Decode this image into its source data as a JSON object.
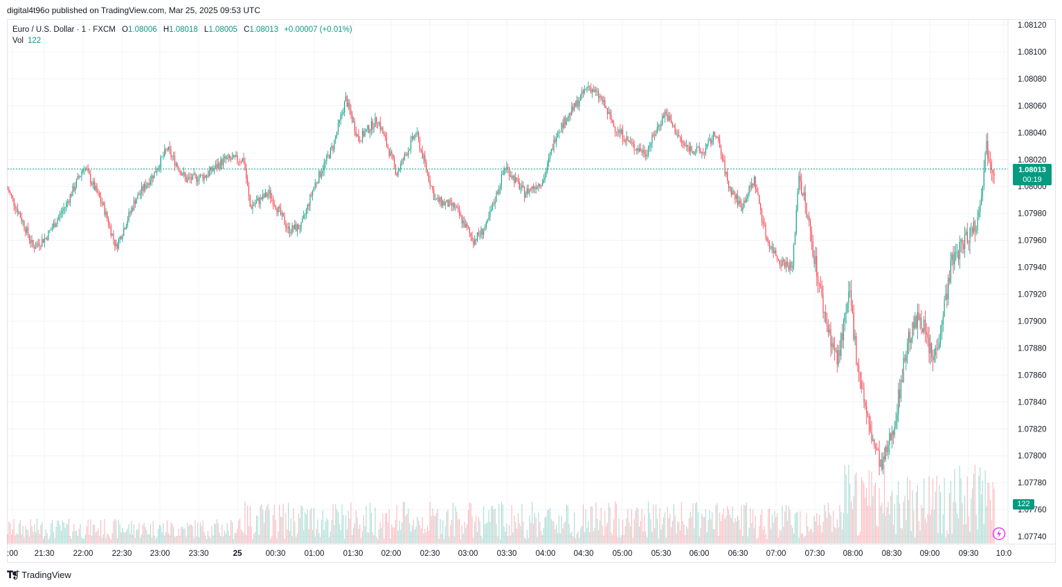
{
  "publisher_line": "digital4t96o published on TradingView.com, Mar 25, 2025 09:53 UTC",
  "footer": {
    "brand": "TradingView",
    "logo_icon": "tradingview-logo-icon"
  },
  "legend": {
    "symbol": "Euro / U.S. Dollar · 1 · FXCM",
    "open_label": "O",
    "open": "1.08006",
    "high_label": "H",
    "high": "1.08018",
    "low_label": "L",
    "low": "1.08005",
    "close_label": "C",
    "close": "1.08013",
    "change": "+0.00007 (+0.01%)",
    "vol_label": "Vol",
    "vol": "122"
  },
  "badges": {
    "last_price": "1.08013",
    "countdown": "00:19",
    "last_volume": "122"
  },
  "colors": {
    "up": "#089981",
    "down": "#f23645",
    "grid": "#f0f3fa",
    "last_line": "#089981",
    "flash": "#e040fb"
  },
  "chart_data": {
    "type": "candlestick",
    "title": "Euro / U.S. Dollar · 1 · FXCM",
    "interval": "1 minute",
    "y_axis": {
      "ylim": [
        1.0773,
        1.0813
      ],
      "ticks": [
        "1.08120",
        "1.08100",
        "1.08080",
        "1.08060",
        "1.08040",
        "1.08020",
        "1.08000",
        "1.07980",
        "1.07960",
        "1.07940",
        "1.07920",
        "1.07900",
        "1.07880",
        "1.07860",
        "1.07840",
        "1.07820",
        "1.07800",
        "1.07780",
        "1.07760",
        "1.07740"
      ],
      "position": "right"
    },
    "x_axis": {
      "ticks": [
        ":00",
        "21:30",
        "22:00",
        "22:30",
        "23:00",
        "23:30",
        "25",
        "00:30",
        "01:00",
        "01:30",
        "02:00",
        "02:30",
        "03:00",
        "03:30",
        "04:00",
        "04:30",
        "05:00",
        "05:30",
        "06:00",
        "06:30",
        "07:00",
        "07:30",
        "08:00",
        "08:30",
        "09:00",
        "09:30",
        "10:0"
      ],
      "start_time": "21:00",
      "end_time": "09:53",
      "bold_tick": "25"
    },
    "grid": true,
    "last_price": 1.08013,
    "price_path": [
      {
        "t": "21:00",
        "p": 1.07998
      },
      {
        "t": "21:10",
        "p": 1.07978
      },
      {
        "t": "21:20",
        "p": 1.07955
      },
      {
        "t": "21:30",
        "p": 1.07962
      },
      {
        "t": "21:45",
        "p": 1.07985
      },
      {
        "t": "22:00",
        "p": 1.08015
      },
      {
        "t": "22:15",
        "p": 1.07985
      },
      {
        "t": "22:25",
        "p": 1.07955
      },
      {
        "t": "22:40",
        "p": 1.0799
      },
      {
        "t": "22:55",
        "p": 1.0801
      },
      {
        "t": "23:05",
        "p": 1.08028
      },
      {
        "t": "23:20",
        "p": 1.08005
      },
      {
        "t": "23:35",
        "p": 1.08008
      },
      {
        "t": "23:50",
        "p": 1.0802
      },
      {
        "t": "00:05",
        "p": 1.0802
      },
      {
        "t": "00:10",
        "p": 1.07985
      },
      {
        "t": "00:25",
        "p": 1.07995
      },
      {
        "t": "00:40",
        "p": 1.07968
      },
      {
        "t": "00:50",
        "p": 1.0797
      },
      {
        "t": "01:00",
        "p": 1.08
      },
      {
        "t": "01:15",
        "p": 1.0803
      },
      {
        "t": "01:25",
        "p": 1.08065
      },
      {
        "t": "01:35",
        "p": 1.08035
      },
      {
        "t": "01:50",
        "p": 1.0805
      },
      {
        "t": "02:05",
        "p": 1.0801
      },
      {
        "t": "02:20",
        "p": 1.0804
      },
      {
        "t": "02:35",
        "p": 1.0799
      },
      {
        "t": "02:50",
        "p": 1.07985
      },
      {
        "t": "03:05",
        "p": 1.0796
      },
      {
        "t": "03:15",
        "p": 1.0797
      },
      {
        "t": "03:30",
        "p": 1.08015
      },
      {
        "t": "03:45",
        "p": 1.07995
      },
      {
        "t": "04:00",
        "p": 1.08005
      },
      {
        "t": "04:10",
        "p": 1.0804
      },
      {
        "t": "04:25",
        "p": 1.0806
      },
      {
        "t": "04:35",
        "p": 1.08075
      },
      {
        "t": "04:45",
        "p": 1.08065
      },
      {
        "t": "04:55",
        "p": 1.08045
      },
      {
        "t": "05:10",
        "p": 1.0803
      },
      {
        "t": "05:20",
        "p": 1.08025
      },
      {
        "t": "05:35",
        "p": 1.08055
      },
      {
        "t": "05:50",
        "p": 1.0803
      },
      {
        "t": "06:05",
        "p": 1.08025
      },
      {
        "t": "06:15",
        "p": 1.0804
      },
      {
        "t": "06:25",
        "p": 1.08
      },
      {
        "t": "06:35",
        "p": 1.07985
      },
      {
        "t": "06:45",
        "p": 1.08005
      },
      {
        "t": "06:55",
        "p": 1.0796
      },
      {
        "t": "07:05",
        "p": 1.07945
      },
      {
        "t": "07:15",
        "p": 1.0794
      },
      {
        "t": "07:20",
        "p": 1.0801
      },
      {
        "t": "07:30",
        "p": 1.0796
      },
      {
        "t": "07:40",
        "p": 1.07905
      },
      {
        "t": "07:50",
        "p": 1.0787
      },
      {
        "t": "08:00",
        "p": 1.0792
      },
      {
        "t": "08:05",
        "p": 1.07875
      },
      {
        "t": "08:15",
        "p": 1.0782
      },
      {
        "t": "08:25",
        "p": 1.0779
      },
      {
        "t": "08:35",
        "p": 1.07825
      },
      {
        "t": "08:45",
        "p": 1.07885
      },
      {
        "t": "08:55",
        "p": 1.07905
      },
      {
        "t": "09:05",
        "p": 1.0787
      },
      {
        "t": "09:10",
        "p": 1.0789
      },
      {
        "t": "09:20",
        "p": 1.07945
      },
      {
        "t": "09:30",
        "p": 1.0796
      },
      {
        "t": "09:40",
        "p": 1.07975
      },
      {
        "t": "09:47",
        "p": 1.0803
      },
      {
        "t": "09:53",
        "p": 1.08013
      }
    ]
  }
}
